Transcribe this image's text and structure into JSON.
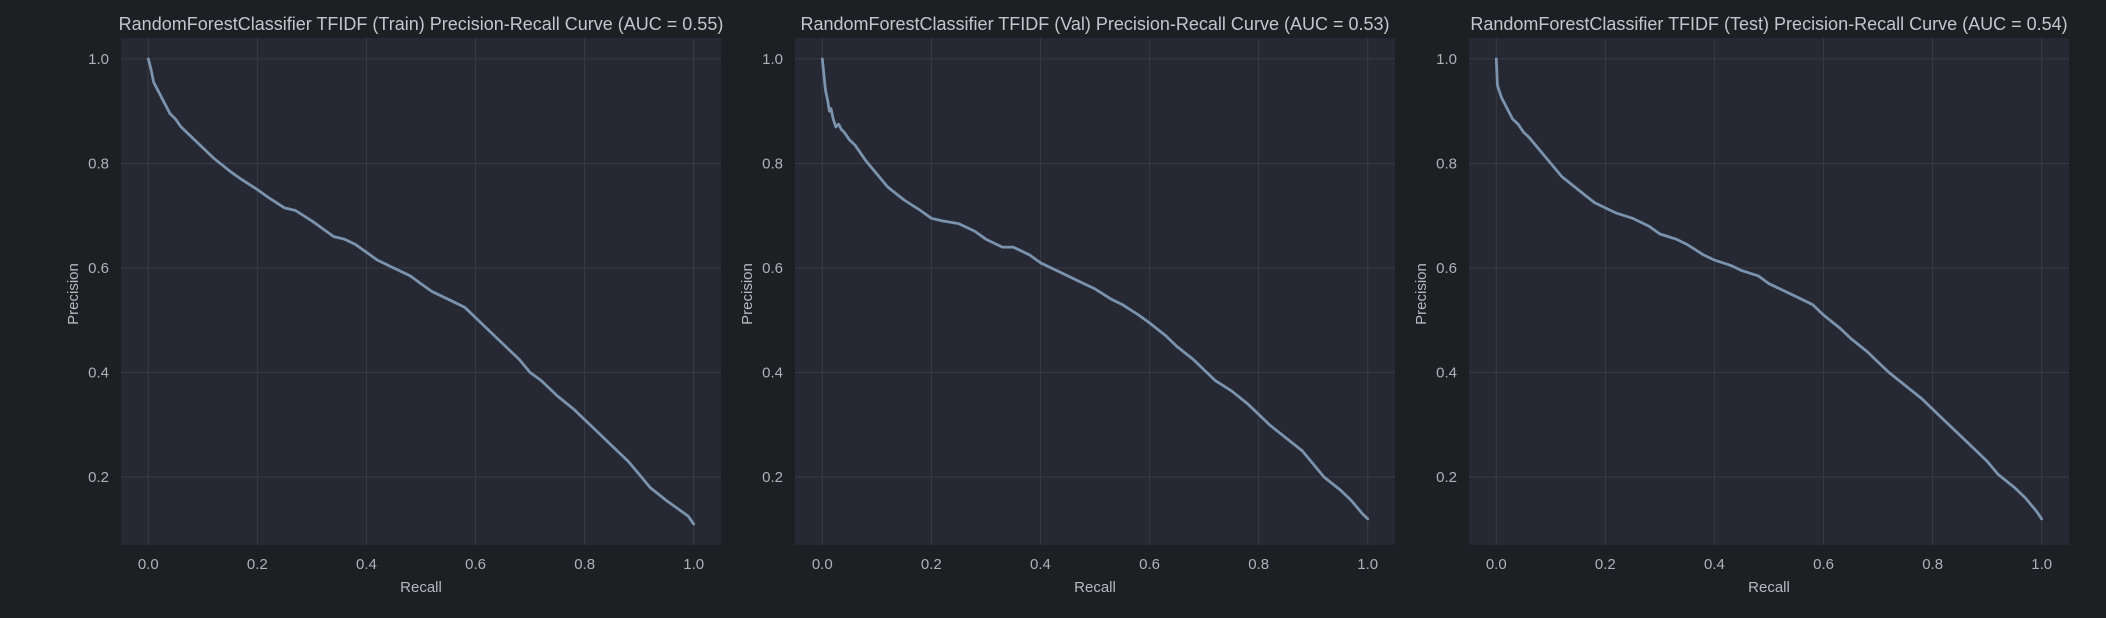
{
  "figure": {
    "background": "#1e1f22",
    "plot_background": "#262834",
    "grid_color": "#383a46",
    "line_color": "#7b93ad"
  },
  "chart_data": [
    {
      "type": "line",
      "title": "RandomForestClassifier TFIDF (Train) Precision-Recall Curve (AUC = 0.55)",
      "xlabel": "Recall",
      "ylabel": "Precision",
      "xlim": [
        -0.05,
        1.05
      ],
      "ylim": [
        0.07,
        1.04
      ],
      "xticks": [
        0.0,
        0.2,
        0.4,
        0.6,
        0.8,
        1.0
      ],
      "xtick_labels": [
        "0.0",
        "0.2",
        "0.4",
        "0.6",
        "0.8",
        "1.0"
      ],
      "yticks": [
        0.2,
        0.4,
        0.6,
        0.8,
        1.0
      ],
      "ytick_labels": [
        "0.2",
        "0.4",
        "0.6",
        "0.8",
        "1.0"
      ],
      "grid": true,
      "series": [
        {
          "x": [
            0.0,
            0.005,
            0.01,
            0.015,
            0.02,
            0.03,
            0.04,
            0.05,
            0.06,
            0.08,
            0.1,
            0.12,
            0.15,
            0.17,
            0.2,
            0.22,
            0.25,
            0.27,
            0.3,
            0.32,
            0.34,
            0.36,
            0.38,
            0.4,
            0.42,
            0.45,
            0.48,
            0.5,
            0.52,
            0.55,
            0.58,
            0.6,
            0.62,
            0.65,
            0.68,
            0.7,
            0.72,
            0.75,
            0.78,
            0.8,
            0.82,
            0.85,
            0.88,
            0.9,
            0.92,
            0.95,
            0.97,
            0.99,
            1.0
          ],
          "y": [
            1.0,
            0.98,
            0.955,
            0.945,
            0.935,
            0.915,
            0.895,
            0.885,
            0.87,
            0.85,
            0.83,
            0.81,
            0.785,
            0.77,
            0.75,
            0.735,
            0.715,
            0.71,
            0.69,
            0.675,
            0.66,
            0.655,
            0.645,
            0.63,
            0.615,
            0.6,
            0.585,
            0.57,
            0.555,
            0.54,
            0.525,
            0.505,
            0.485,
            0.455,
            0.425,
            0.4,
            0.385,
            0.355,
            0.33,
            0.31,
            0.29,
            0.26,
            0.23,
            0.205,
            0.18,
            0.155,
            0.14,
            0.125,
            0.11
          ]
        }
      ]
    },
    {
      "type": "line",
      "title": "RandomForestClassifier TFIDF (Val) Precision-Recall Curve (AUC = 0.53)",
      "xlabel": "Recall",
      "ylabel": "Precision",
      "xlim": [
        -0.05,
        1.05
      ],
      "ylim": [
        0.07,
        1.04
      ],
      "xticks": [
        0.0,
        0.2,
        0.4,
        0.6,
        0.8,
        1.0
      ],
      "xtick_labels": [
        "0.0",
        "0.2",
        "0.4",
        "0.6",
        "0.8",
        "1.0"
      ],
      "yticks": [
        0.2,
        0.4,
        0.6,
        0.8,
        1.0
      ],
      "ytick_labels": [
        "0.2",
        "0.4",
        "0.6",
        "0.8",
        "1.0"
      ],
      "grid": true,
      "series": [
        {
          "x": [
            0.0,
            0.003,
            0.006,
            0.01,
            0.013,
            0.016,
            0.02,
            0.025,
            0.03,
            0.035,
            0.04,
            0.05,
            0.06,
            0.08,
            0.1,
            0.12,
            0.15,
            0.18,
            0.2,
            0.22,
            0.25,
            0.28,
            0.3,
            0.33,
            0.35,
            0.38,
            0.4,
            0.43,
            0.45,
            0.48,
            0.5,
            0.53,
            0.55,
            0.58,
            0.6,
            0.63,
            0.65,
            0.68,
            0.7,
            0.72,
            0.75,
            0.78,
            0.8,
            0.82,
            0.85,
            0.88,
            0.9,
            0.92,
            0.95,
            0.97,
            0.99,
            1.0
          ],
          "y": [
            1.0,
            0.97,
            0.94,
            0.92,
            0.9,
            0.905,
            0.885,
            0.87,
            0.875,
            0.865,
            0.86,
            0.845,
            0.835,
            0.805,
            0.78,
            0.755,
            0.73,
            0.71,
            0.695,
            0.69,
            0.685,
            0.67,
            0.655,
            0.64,
            0.64,
            0.625,
            0.61,
            0.595,
            0.585,
            0.57,
            0.56,
            0.54,
            0.53,
            0.51,
            0.495,
            0.47,
            0.45,
            0.425,
            0.405,
            0.385,
            0.365,
            0.34,
            0.32,
            0.3,
            0.275,
            0.25,
            0.225,
            0.2,
            0.175,
            0.155,
            0.13,
            0.12
          ]
        }
      ]
    },
    {
      "type": "line",
      "title": "RandomForestClassifier TFIDF (Test) Precision-Recall Curve (AUC = 0.54)",
      "xlabel": "Recall",
      "ylabel": "Precision",
      "xlim": [
        -0.05,
        1.05
      ],
      "ylim": [
        0.07,
        1.04
      ],
      "xticks": [
        0.0,
        0.2,
        0.4,
        0.6,
        0.8,
        1.0
      ],
      "xtick_labels": [
        "0.0",
        "0.2",
        "0.4",
        "0.6",
        "0.8",
        "1.0"
      ],
      "yticks": [
        0.2,
        0.4,
        0.6,
        0.8,
        1.0
      ],
      "ytick_labels": [
        "0.2",
        "0.4",
        "0.6",
        "0.8",
        "1.0"
      ],
      "grid": true,
      "series": [
        {
          "x": [
            0.0,
            0.002,
            0.005,
            0.01,
            0.015,
            0.02,
            0.03,
            0.04,
            0.05,
            0.06,
            0.08,
            0.1,
            0.12,
            0.15,
            0.18,
            0.2,
            0.22,
            0.25,
            0.28,
            0.3,
            0.33,
            0.35,
            0.38,
            0.4,
            0.43,
            0.45,
            0.48,
            0.5,
            0.53,
            0.55,
            0.58,
            0.6,
            0.63,
            0.65,
            0.68,
            0.7,
            0.72,
            0.75,
            0.78,
            0.8,
            0.82,
            0.85,
            0.88,
            0.9,
            0.92,
            0.95,
            0.97,
            0.99,
            1.0
          ],
          "y": [
            1.0,
            0.95,
            0.94,
            0.925,
            0.915,
            0.905,
            0.885,
            0.875,
            0.86,
            0.85,
            0.825,
            0.8,
            0.775,
            0.75,
            0.725,
            0.715,
            0.705,
            0.695,
            0.68,
            0.665,
            0.655,
            0.645,
            0.625,
            0.615,
            0.605,
            0.595,
            0.585,
            0.57,
            0.555,
            0.545,
            0.53,
            0.51,
            0.485,
            0.465,
            0.44,
            0.42,
            0.4,
            0.375,
            0.35,
            0.33,
            0.31,
            0.28,
            0.25,
            0.23,
            0.205,
            0.18,
            0.16,
            0.135,
            0.12
          ]
        }
      ]
    }
  ]
}
